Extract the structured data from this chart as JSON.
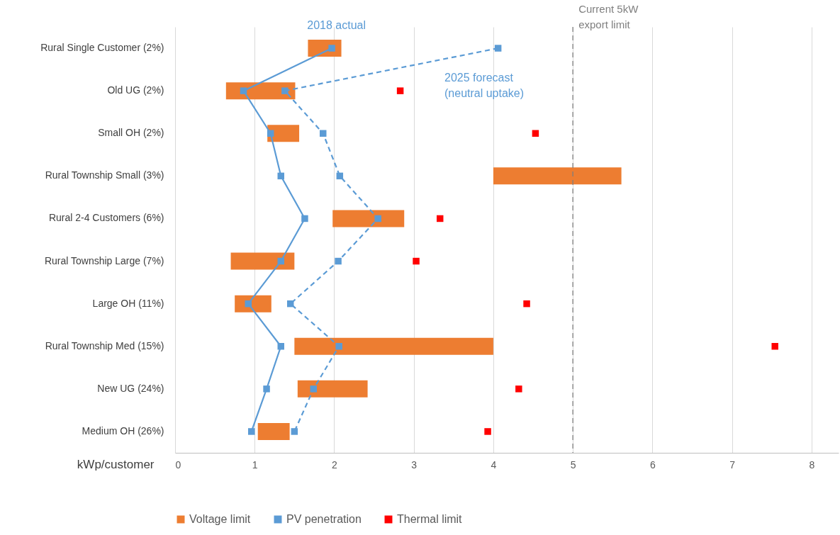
{
  "chart_data": {
    "type": "bar",
    "orientation": "horizontal",
    "xlabel": "kWp/customer",
    "categories": [
      "Rural Single Customer (2%)",
      "Old UG (2%)",
      "Small OH (2%)",
      "Rural Township Small (3%)",
      "Rural 2-4 Customers (6%)",
      "Rural Township Large (7%)",
      "Large OH (11%)",
      "Rural Township Med (15%)",
      "New UG (24%)",
      "Medium OH (26%)"
    ],
    "series": [
      {
        "name": "Voltage limit",
        "type": "bar",
        "color": "#ed7d31",
        "base": [
          1.67,
          0.64,
          1.16,
          4.0,
          1.98,
          0.7,
          0.75,
          1.5,
          1.54,
          1.04
        ],
        "values": [
          0.42,
          0.87,
          0.4,
          1.61,
          0.9,
          0.8,
          0.46,
          2.5,
          0.88,
          0.4
        ]
      },
      {
        "name": "PV penetration",
        "type": "line",
        "color": "#5b9bd5",
        "line_style": "solid",
        "marker": "square",
        "values": [
          1.97,
          0.86,
          1.2,
          1.33,
          1.63,
          1.33,
          0.92,
          1.33,
          1.15,
          0.96
        ]
      },
      {
        "type": "line",
        "color": "#5b9bd5",
        "line_style": "dashed",
        "marker": "square",
        "values": [
          4.06,
          1.38,
          1.86,
          2.07,
          2.55,
          2.05,
          1.45,
          2.06,
          1.74,
          1.5
        ]
      },
      {
        "name": "Thermal limit",
        "type": "scatter",
        "color": "#ff0000",
        "marker": "square",
        "values": [
          null,
          2.83,
          4.53,
          null,
          3.33,
          3.03,
          4.42,
          7.54,
          4.32,
          3.93
        ]
      }
    ],
    "xlim": [
      0,
      8.34
    ],
    "xticks": [
      0,
      1,
      2,
      3,
      4,
      5,
      6,
      7,
      8
    ],
    "grid": "x",
    "legend": "bottom",
    "ref_lines": [
      {
        "axis": "x",
        "value": 5,
        "label": "Current 5kW\nexport limit",
        "color": "#7f7f7f",
        "line_style": "dashed"
      }
    ],
    "annotations": [
      {
        "text": "2018 actual",
        "x": 1.66,
        "y": "Rural Single Customer (2%)"
      },
      "2025 forecast\n(neutral uptake)"
    ]
  }
}
